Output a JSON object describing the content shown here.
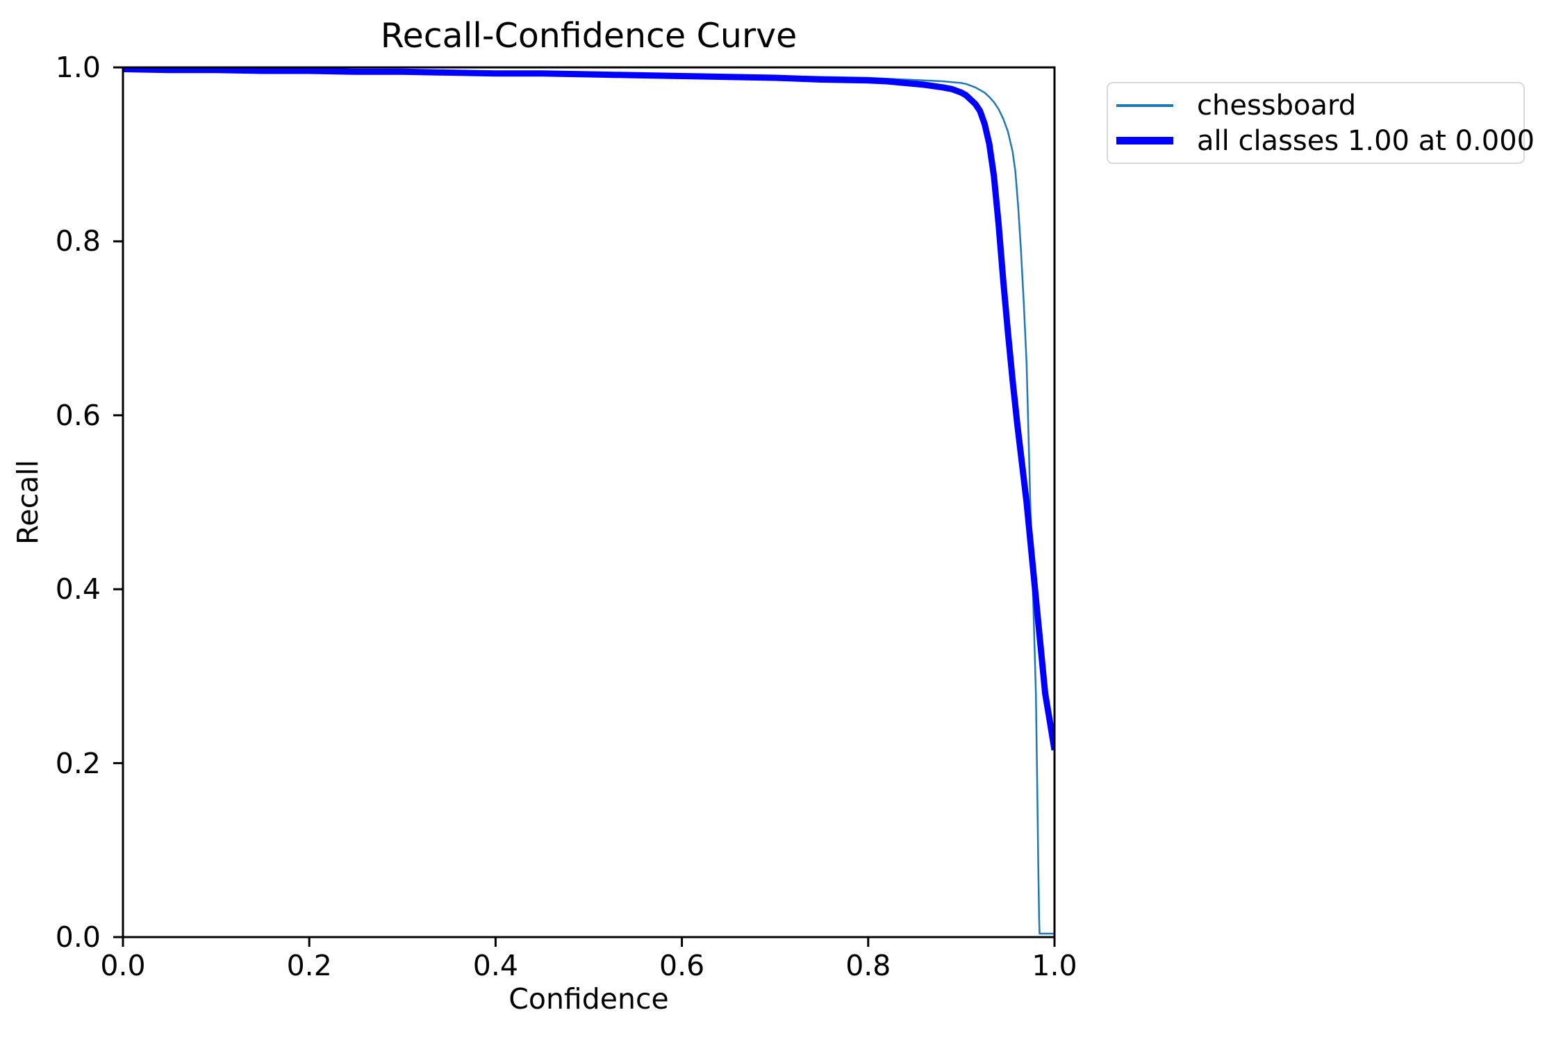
{
  "chart_data": {
    "type": "line",
    "title": "Recall-Confidence Curve",
    "xlabel": "Confidence",
    "ylabel": "Recall",
    "xlim": [
      0.0,
      1.0
    ],
    "ylim": [
      0.0,
      1.0
    ],
    "x_tick_values": [
      0.0,
      0.2,
      0.4,
      0.6,
      0.8,
      1.0
    ],
    "x_tick_labels": [
      "0.0",
      "0.2",
      "0.4",
      "0.6",
      "0.8",
      "1.0"
    ],
    "y_tick_values": [
      0.0,
      0.2,
      0.4,
      0.6,
      0.8,
      1.0
    ],
    "y_tick_labels": [
      "0.0",
      "0.2",
      "0.4",
      "0.6",
      "0.8",
      "1.0"
    ],
    "grid": false,
    "background_color": "#ffffff",
    "axis_color": "#000000",
    "legend_position": "outside-upper-right",
    "series": [
      {
        "name": "chessboard",
        "color": "#1f77b4",
        "line_width": 2.5,
        "points": [
          [
            0.0,
            0.999
          ],
          [
            0.05,
            0.998
          ],
          [
            0.1,
            0.998
          ],
          [
            0.15,
            0.997
          ],
          [
            0.2,
            0.997
          ],
          [
            0.25,
            0.996
          ],
          [
            0.3,
            0.996
          ],
          [
            0.35,
            0.995
          ],
          [
            0.4,
            0.995
          ],
          [
            0.45,
            0.994
          ],
          [
            0.5,
            0.993
          ],
          [
            0.55,
            0.993
          ],
          [
            0.6,
            0.992
          ],
          [
            0.65,
            0.991
          ],
          [
            0.7,
            0.99
          ],
          [
            0.75,
            0.989
          ],
          [
            0.8,
            0.988
          ],
          [
            0.82,
            0.987
          ],
          [
            0.84,
            0.986
          ],
          [
            0.86,
            0.985
          ],
          [
            0.88,
            0.984
          ],
          [
            0.9,
            0.982
          ],
          [
            0.905,
            0.981
          ],
          [
            0.91,
            0.979
          ],
          [
            0.915,
            0.977
          ],
          [
            0.92,
            0.974
          ],
          [
            0.925,
            0.971
          ],
          [
            0.93,
            0.966
          ],
          [
            0.935,
            0.96
          ],
          [
            0.94,
            0.952
          ],
          [
            0.945,
            0.941
          ],
          [
            0.95,
            0.926
          ],
          [
            0.955,
            0.903
          ],
          [
            0.958,
            0.88
          ],
          [
            0.961,
            0.84
          ],
          [
            0.964,
            0.79
          ],
          [
            0.967,
            0.73
          ],
          [
            0.97,
            0.66
          ],
          [
            0.972,
            0.58
          ],
          [
            0.974,
            0.5
          ],
          [
            0.976,
            0.43
          ],
          [
            0.978,
            0.355
          ],
          [
            0.98,
            0.28
          ],
          [
            0.9815,
            0.17
          ],
          [
            0.9825,
            0.09
          ],
          [
            0.9835,
            0.02
          ],
          [
            0.984,
            0.004
          ],
          [
            1.0,
            0.004
          ]
        ]
      },
      {
        "name": "all classes 1.00 at 0.000",
        "color": "#0000ff",
        "line_width": 9,
        "points": [
          [
            0.0,
            0.998
          ],
          [
            0.05,
            0.997
          ],
          [
            0.1,
            0.997
          ],
          [
            0.15,
            0.996
          ],
          [
            0.2,
            0.996
          ],
          [
            0.25,
            0.995
          ],
          [
            0.3,
            0.995
          ],
          [
            0.35,
            0.994
          ],
          [
            0.4,
            0.993
          ],
          [
            0.45,
            0.993
          ],
          [
            0.5,
            0.992
          ],
          [
            0.55,
            0.991
          ],
          [
            0.6,
            0.99
          ],
          [
            0.65,
            0.989
          ],
          [
            0.7,
            0.988
          ],
          [
            0.75,
            0.986
          ],
          [
            0.8,
            0.985
          ],
          [
            0.82,
            0.984
          ],
          [
            0.84,
            0.982
          ],
          [
            0.86,
            0.98
          ],
          [
            0.88,
            0.977
          ],
          [
            0.89,
            0.975
          ],
          [
            0.9,
            0.971
          ],
          [
            0.905,
            0.968
          ],
          [
            0.91,
            0.963
          ],
          [
            0.915,
            0.958
          ],
          [
            0.92,
            0.95
          ],
          [
            0.925,
            0.935
          ],
          [
            0.93,
            0.912
          ],
          [
            0.935,
            0.875
          ],
          [
            0.94,
            0.82
          ],
          [
            0.945,
            0.755
          ],
          [
            0.95,
            0.695
          ],
          [
            0.955,
            0.64
          ],
          [
            0.96,
            0.59
          ],
          [
            0.965,
            0.545
          ],
          [
            0.97,
            0.5
          ],
          [
            0.975,
            0.445
          ],
          [
            0.98,
            0.39
          ],
          [
            0.985,
            0.335
          ],
          [
            0.99,
            0.28
          ],
          [
            0.995,
            0.248
          ],
          [
            1.0,
            0.215
          ]
        ]
      }
    ],
    "legend_entries": [
      "chessboard",
      "all classes 1.00 at 0.000"
    ]
  }
}
